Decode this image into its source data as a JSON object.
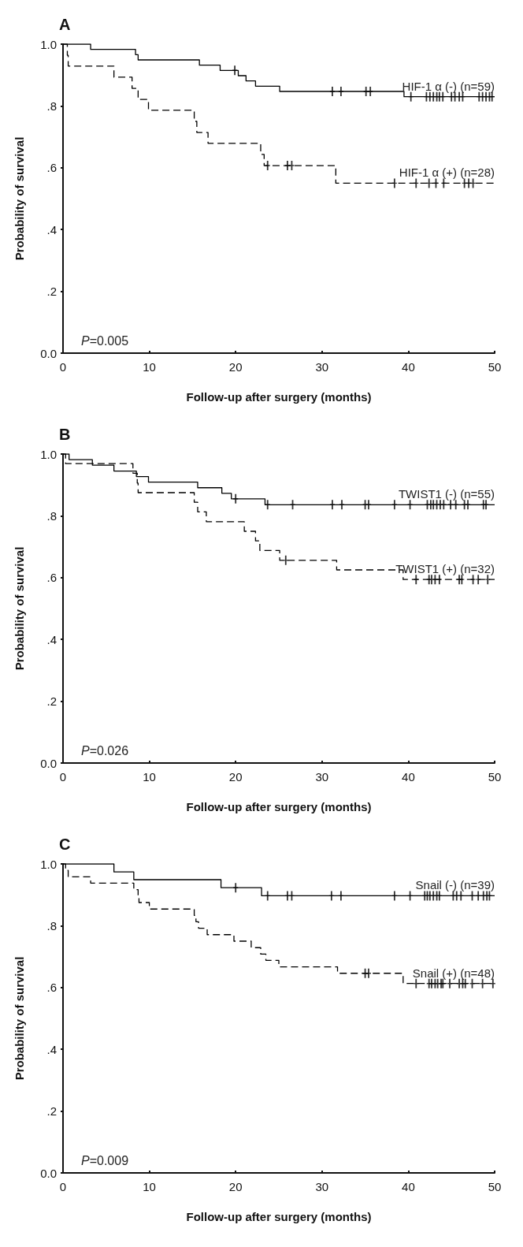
{
  "chart_data": [
    {
      "type": "step",
      "title": "A",
      "xlabel": "Follow-up after surgery (months)",
      "ylabel": "Probability of survival",
      "annotations": [
        "P=0.005"
      ],
      "xlim": [
        0,
        50
      ],
      "xticks": [
        0,
        10,
        20,
        30,
        40,
        50
      ],
      "ylim": [
        0,
        1
      ],
      "yticks": [
        {
          "value": 0,
          "label": "0.0"
        },
        {
          "value": 0.2,
          "label": ".2"
        },
        {
          "value": 0.4,
          "label": ".4"
        },
        {
          "value": 0.6,
          "label": ".6"
        },
        {
          "value": 0.8,
          "label": ".8"
        },
        {
          "value": 1,
          "label": "1.0"
        }
      ],
      "grid": false,
      "legend": false,
      "marker": "none",
      "series": [
        {
          "name": "HIF-1 α (-) (n=59)",
          "color": "#000000",
          "line_style": "solid",
          "x": [
            0,
            3.2,
            8.4,
            8.7,
            15.8,
            18.2,
            20.3,
            21.2,
            22.3,
            25.1,
            39.5,
            50
          ],
          "values": [
            1,
            0.983,
            0.966,
            0.949,
            0.932,
            0.915,
            0.898,
            0.881,
            0.864,
            0.847,
            0.83,
            0.83
          ]
        },
        {
          "name": "HIF-1 α (+) (n=28)",
          "color": "#000000",
          "line_style": "dashed",
          "x": [
            0,
            0.5,
            0.6,
            5.9,
            8.0,
            8.7,
            9.9,
            15.2,
            15.5,
            16.8,
            22.9,
            23.3,
            31.6,
            50
          ],
          "values": [
            1,
            0.964,
            0.929,
            0.893,
            0.857,
            0.821,
            0.786,
            0.75,
            0.714,
            0.679,
            0.643,
            0.607,
            0.55,
            0.55
          ]
        },
        {
          "type": "scatter",
          "marker": "cross",
          "color": "#000000",
          "x": [
            19.9,
            31.2,
            32.2,
            35.1,
            35.6,
            40.3,
            42.1,
            42.5,
            42.9,
            43.3,
            43.6,
            44.0,
            45.0,
            45.4,
            45.9,
            46.3,
            48.2,
            48.6,
            49.0,
            49.4,
            49.7
          ],
          "values": [
            0.915,
            0.847,
            0.847,
            0.847,
            0.847,
            0.83,
            0.83,
            0.83,
            0.83,
            0.83,
            0.83,
            0.83,
            0.83,
            0.83,
            0.83,
            0.83,
            0.83,
            0.83,
            0.83,
            0.83,
            0.83
          ]
        },
        {
          "type": "scatter",
          "marker": "cross",
          "color": "#000000",
          "x": [
            23.7,
            26.0,
            26.5,
            38.4,
            40.9,
            42.4,
            43.2,
            44.1,
            46.5,
            47.0,
            47.5
          ],
          "values": [
            0.607,
            0.607,
            0.607,
            0.55,
            0.55,
            0.55,
            0.55,
            0.55,
            0.55,
            0.55,
            0.55
          ]
        }
      ]
    },
    {
      "type": "step",
      "title": "B",
      "xlabel": "Follow-up after surgery (months)",
      "ylabel": "Probability of survival",
      "annotations": [
        "P=0.026"
      ],
      "xlim": [
        0,
        50
      ],
      "xticks": [
        0,
        10,
        20,
        30,
        40,
        50
      ],
      "ylim": [
        0,
        1
      ],
      "yticks": [
        {
          "value": 0,
          "label": "0.0"
        },
        {
          "value": 0.2,
          "label": ".2"
        },
        {
          "value": 0.4,
          "label": ".4"
        },
        {
          "value": 0.6,
          "label": ".6"
        },
        {
          "value": 0.8,
          "label": ".8"
        },
        {
          "value": 1,
          "label": "1.0"
        }
      ],
      "grid": false,
      "legend": false,
      "marker": "none",
      "series": [
        {
          "name": "TWIST1 (-) (n=55)",
          "color": "#000000",
          "line_style": "solid",
          "x": [
            0,
            0.7,
            3.4,
            5.9,
            8.5,
            9.9,
            15.6,
            18.4,
            19.5,
            23.4,
            50
          ],
          "values": [
            1,
            0.982,
            0.964,
            0.945,
            0.927,
            0.909,
            0.891,
            0.873,
            0.855,
            0.836,
            0.836
          ]
        },
        {
          "name": "TWIST1 (+) (n=32)",
          "color": "#000000",
          "line_style": "dashed",
          "x": [
            0,
            0.3,
            8.1,
            8.6,
            8.7,
            15.2,
            15.6,
            16.6,
            21.0,
            22.3,
            22.8,
            25.1,
            31.7,
            39.4,
            50
          ],
          "values": [
            1,
            0.969,
            0.938,
            0.906,
            0.875,
            0.844,
            0.813,
            0.781,
            0.75,
            0.719,
            0.688,
            0.656,
            0.625,
            0.594,
            0.594
          ]
        },
        {
          "type": "scatter",
          "marker": "cross",
          "color": "#000000",
          "x": [
            20.0,
            23.7,
            26.6,
            31.2,
            32.3,
            35.0,
            35.4,
            38.4,
            40.2,
            42.2,
            42.6,
            42.9,
            43.3,
            43.7,
            44.1,
            44.9,
            45.5,
            46.5,
            46.9,
            48.7,
            49.0
          ],
          "values": [
            0.855,
            0.836,
            0.836,
            0.836,
            0.836,
            0.836,
            0.836,
            0.836,
            0.836,
            0.836,
            0.836,
            0.836,
            0.836,
            0.836,
            0.836,
            0.836,
            0.836,
            0.836,
            0.836,
            0.836,
            0.836
          ]
        },
        {
          "type": "scatter",
          "marker": "cross",
          "color": "#000000",
          "x": [
            25.8,
            40.9,
            42.4,
            42.7,
            43.1,
            43.6,
            45.9,
            46.2,
            47.5,
            48.1,
            49.2
          ],
          "values": [
            0.656,
            0.594,
            0.594,
            0.594,
            0.594,
            0.594,
            0.594,
            0.594,
            0.594,
            0.594,
            0.594
          ]
        }
      ]
    },
    {
      "type": "step",
      "title": "C",
      "xlabel": "Follow-up after surgery (months)",
      "ylabel": "Probability of survival",
      "annotations": [
        "P=0.009"
      ],
      "xlim": [
        0,
        50
      ],
      "xticks": [
        0,
        10,
        20,
        30,
        40,
        50
      ],
      "ylim": [
        0,
        1
      ],
      "yticks": [
        {
          "value": 0,
          "label": "0.0"
        },
        {
          "value": 0.2,
          "label": ".2"
        },
        {
          "value": 0.4,
          "label": ".4"
        },
        {
          "value": 0.6,
          "label": ".6"
        },
        {
          "value": 0.8,
          "label": ".8"
        },
        {
          "value": 1,
          "label": "1.0"
        }
      ],
      "grid": false,
      "legend": false,
      "marker": "none",
      "series": [
        {
          "name": "Snail (-) (n=39)",
          "color": "#000000",
          "line_style": "solid",
          "x": [
            0,
            5.9,
            8.2,
            18.3,
            23.0,
            50
          ],
          "values": [
            1,
            0.974,
            0.949,
            0.923,
            0.897,
            0.897
          ]
        },
        {
          "name": "Snail (+) (n=48)",
          "color": "#000000",
          "line_style": "dashed",
          "x": [
            0,
            0.3,
            0.6,
            3.2,
            8.2,
            8.7,
            8.8,
            10.0,
            15.2,
            15.4,
            15.7,
            16.7,
            19.8,
            21.8,
            22.9,
            23.5,
            25.0,
            31.8,
            39.4,
            50
          ],
          "values": [
            1,
            0.979,
            0.958,
            0.938,
            0.917,
            0.896,
            0.875,
            0.854,
            0.833,
            0.813,
            0.792,
            0.771,
            0.75,
            0.729,
            0.708,
            0.688,
            0.667,
            0.646,
            0.613,
            0.613
          ]
        },
        {
          "type": "scatter",
          "marker": "cross",
          "color": "#000000",
          "x": [
            20.0,
            23.7,
            26.0,
            26.5,
            31.1,
            32.2,
            38.4,
            40.2,
            41.9,
            42.2,
            42.5,
            42.9,
            43.3,
            43.6,
            45.2,
            45.6,
            46.1,
            47.4,
            48.1,
            48.7,
            49.1,
            49.4
          ],
          "values": [
            0.923,
            0.897,
            0.897,
            0.897,
            0.897,
            0.897,
            0.897,
            0.897,
            0.897,
            0.897,
            0.897,
            0.897,
            0.897,
            0.897,
            0.897,
            0.897,
            0.897,
            0.897,
            0.897,
            0.897,
            0.897,
            0.897
          ]
        },
        {
          "type": "scatter",
          "marker": "cross",
          "color": "#000000",
          "x": [
            35.0,
            35.4,
            40.9,
            42.4,
            42.7,
            43.1,
            43.4,
            43.8,
            44.0,
            44.8,
            45.9,
            46.3,
            46.6,
            47.4,
            48.6,
            49.8
          ],
          "values": [
            0.646,
            0.646,
            0.613,
            0.613,
            0.613,
            0.613,
            0.613,
            0.613,
            0.613,
            0.613,
            0.613,
            0.613,
            0.613,
            0.613,
            0.613,
            0.613
          ]
        }
      ]
    }
  ]
}
